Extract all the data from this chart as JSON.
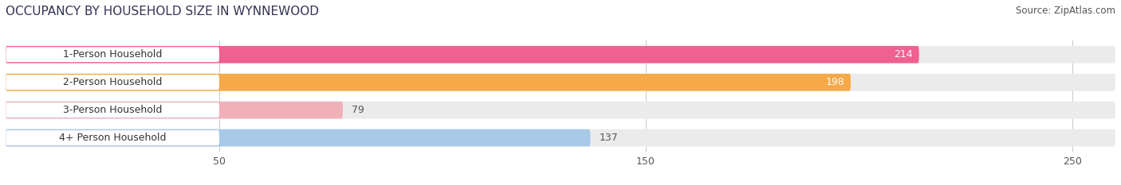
{
  "title": "OCCUPANCY BY HOUSEHOLD SIZE IN WYNNEWOOD",
  "source": "Source: ZipAtlas.com",
  "categories": [
    "1-Person Household",
    "2-Person Household",
    "3-Person Household",
    "4+ Person Household"
  ],
  "values": [
    214,
    198,
    79,
    137
  ],
  "bar_colors": [
    "#f06090",
    "#f5a947",
    "#f0b0b8",
    "#a8c8e8"
  ],
  "bar_label_colors": [
    "white",
    "white",
    "#888888",
    "#888888"
  ],
  "xlim_max": 260,
  "xticks": [
    50,
    150,
    250
  ],
  "background_color": "#ffffff",
  "bar_bg_color": "#ebebeb",
  "label_box_color": "#ffffff",
  "title_fontsize": 11,
  "source_fontsize": 8.5,
  "label_fontsize": 9,
  "value_fontsize": 9
}
